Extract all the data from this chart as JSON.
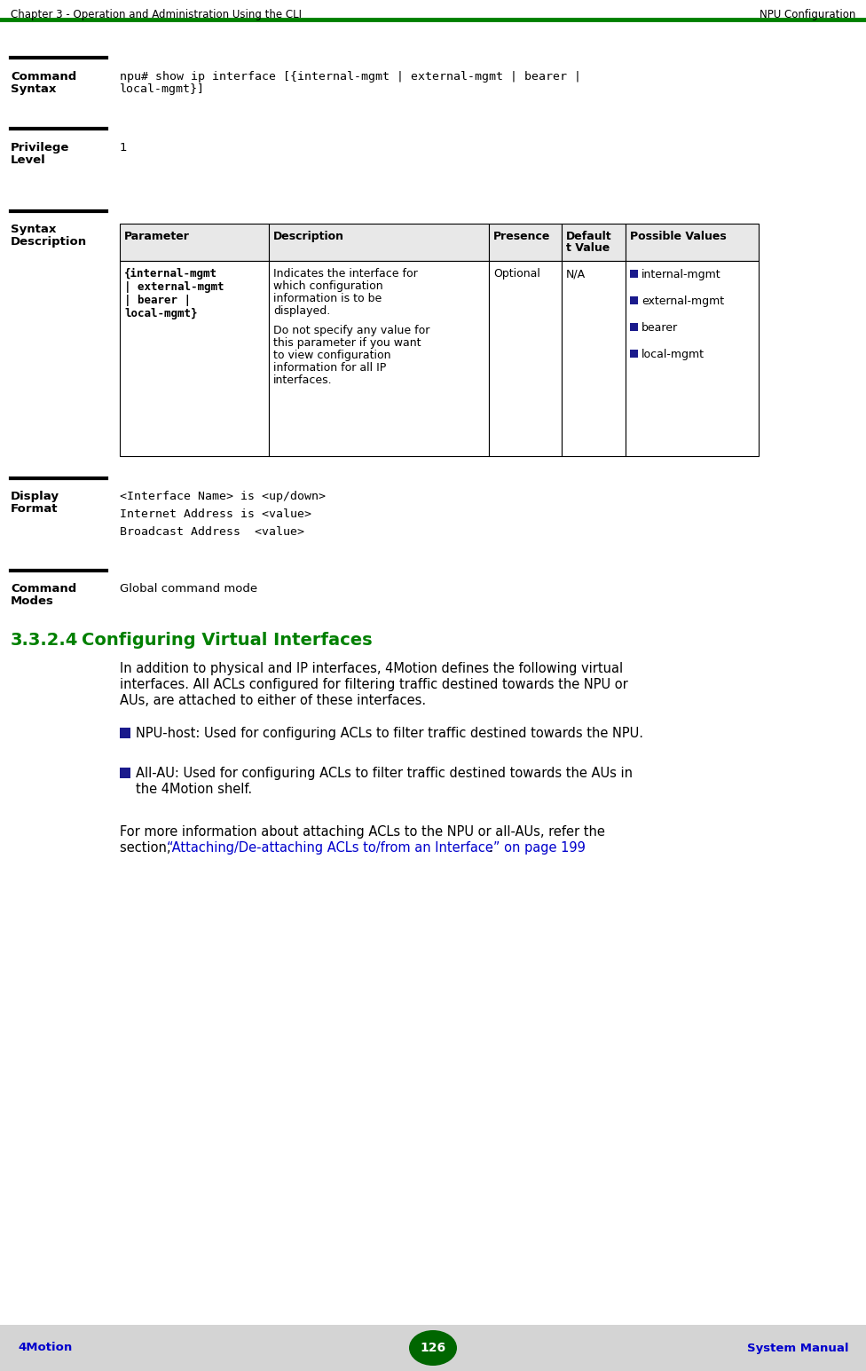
{
  "header_left": "Chapter 3 - Operation and Administration Using the CLI",
  "header_right": "NPU Configuration",
  "header_line_color": "#008000",
  "footer_left": "4Motion",
  "footer_right": "System Manual",
  "footer_page": "126",
  "footer_ellipse_color": "#006600",
  "footer_text_color": "#0000cc",
  "footer_bg": "#d4d4d4",
  "section_number": "3.3.2.4",
  "section_title": "Configuring Virtual Interfaces",
  "section_title_color": "#008000",
  "mono_font": "DejaVu Sans Mono",
  "sans_font": "DejaVu Sans",
  "cmd_syntax_line1": "npu# show ip interface [{internal-mgmt | external-mgmt | bearer |",
  "cmd_syntax_line2": "local-mgmt}]",
  "privilege_value": "1",
  "table_headers": [
    "Parameter",
    "Description",
    "Presence",
    "Default\nt Value",
    "Possible Values"
  ],
  "table_param_lines": [
    "{internal-mgmt",
    "| external-mgmt",
    "| bearer |",
    "local-mgmt}"
  ],
  "table_desc_part1": [
    "Indicates the interface for",
    "which configuration",
    "information is to be",
    "displayed."
  ],
  "table_desc_part2": [
    "Do not specify any value for",
    "this parameter if you want",
    "to view configuration",
    "information for all IP",
    "interfaces."
  ],
  "table_presence": "Optional",
  "table_default": "N/A",
  "table_possible": [
    "internal-mgmt",
    "external-mgmt",
    "bearer",
    "local-mgmt"
  ],
  "display_lines": [
    "<Interface Name> is <up/down>",
    "Internet Address is <value>",
    "Broadcast Address  <value>"
  ],
  "cmd_modes_text": "Global command mode",
  "body_para1_lines": [
    "In addition to physical and IP interfaces, 4Motion defines the following virtual",
    "interfaces. All ACLs configured for filtering traffic destined towards the NPU or",
    "AUs, are attached to either of these interfaces."
  ],
  "bullet1": "NPU-host: Used for configuring ACLs to filter traffic destined towards the NPU.",
  "bullet2_line1": "All-AU: Used for configuring ACLs to filter traffic destined towards the AUs in",
  "bullet2_line2": "the 4Motion shelf.",
  "body_para2_line1": "For more information about attaching ACLs to the NPU or all-AUs, refer the",
  "body_para2_prefix": "section, ",
  "body_para2_link": "“Attaching/De-attaching ACLs to/from an Interface” on page 199",
  "body_para2_suffix": ".",
  "link_color": "#0000cc",
  "bullet_color": "#1a1a8c",
  "bg_color": "#ffffff",
  "label_fs": 9.5,
  "body_fs": 10.5,
  "mono_fs": 9.5,
  "table_fs": 9.0,
  "section_fs": 14.0
}
